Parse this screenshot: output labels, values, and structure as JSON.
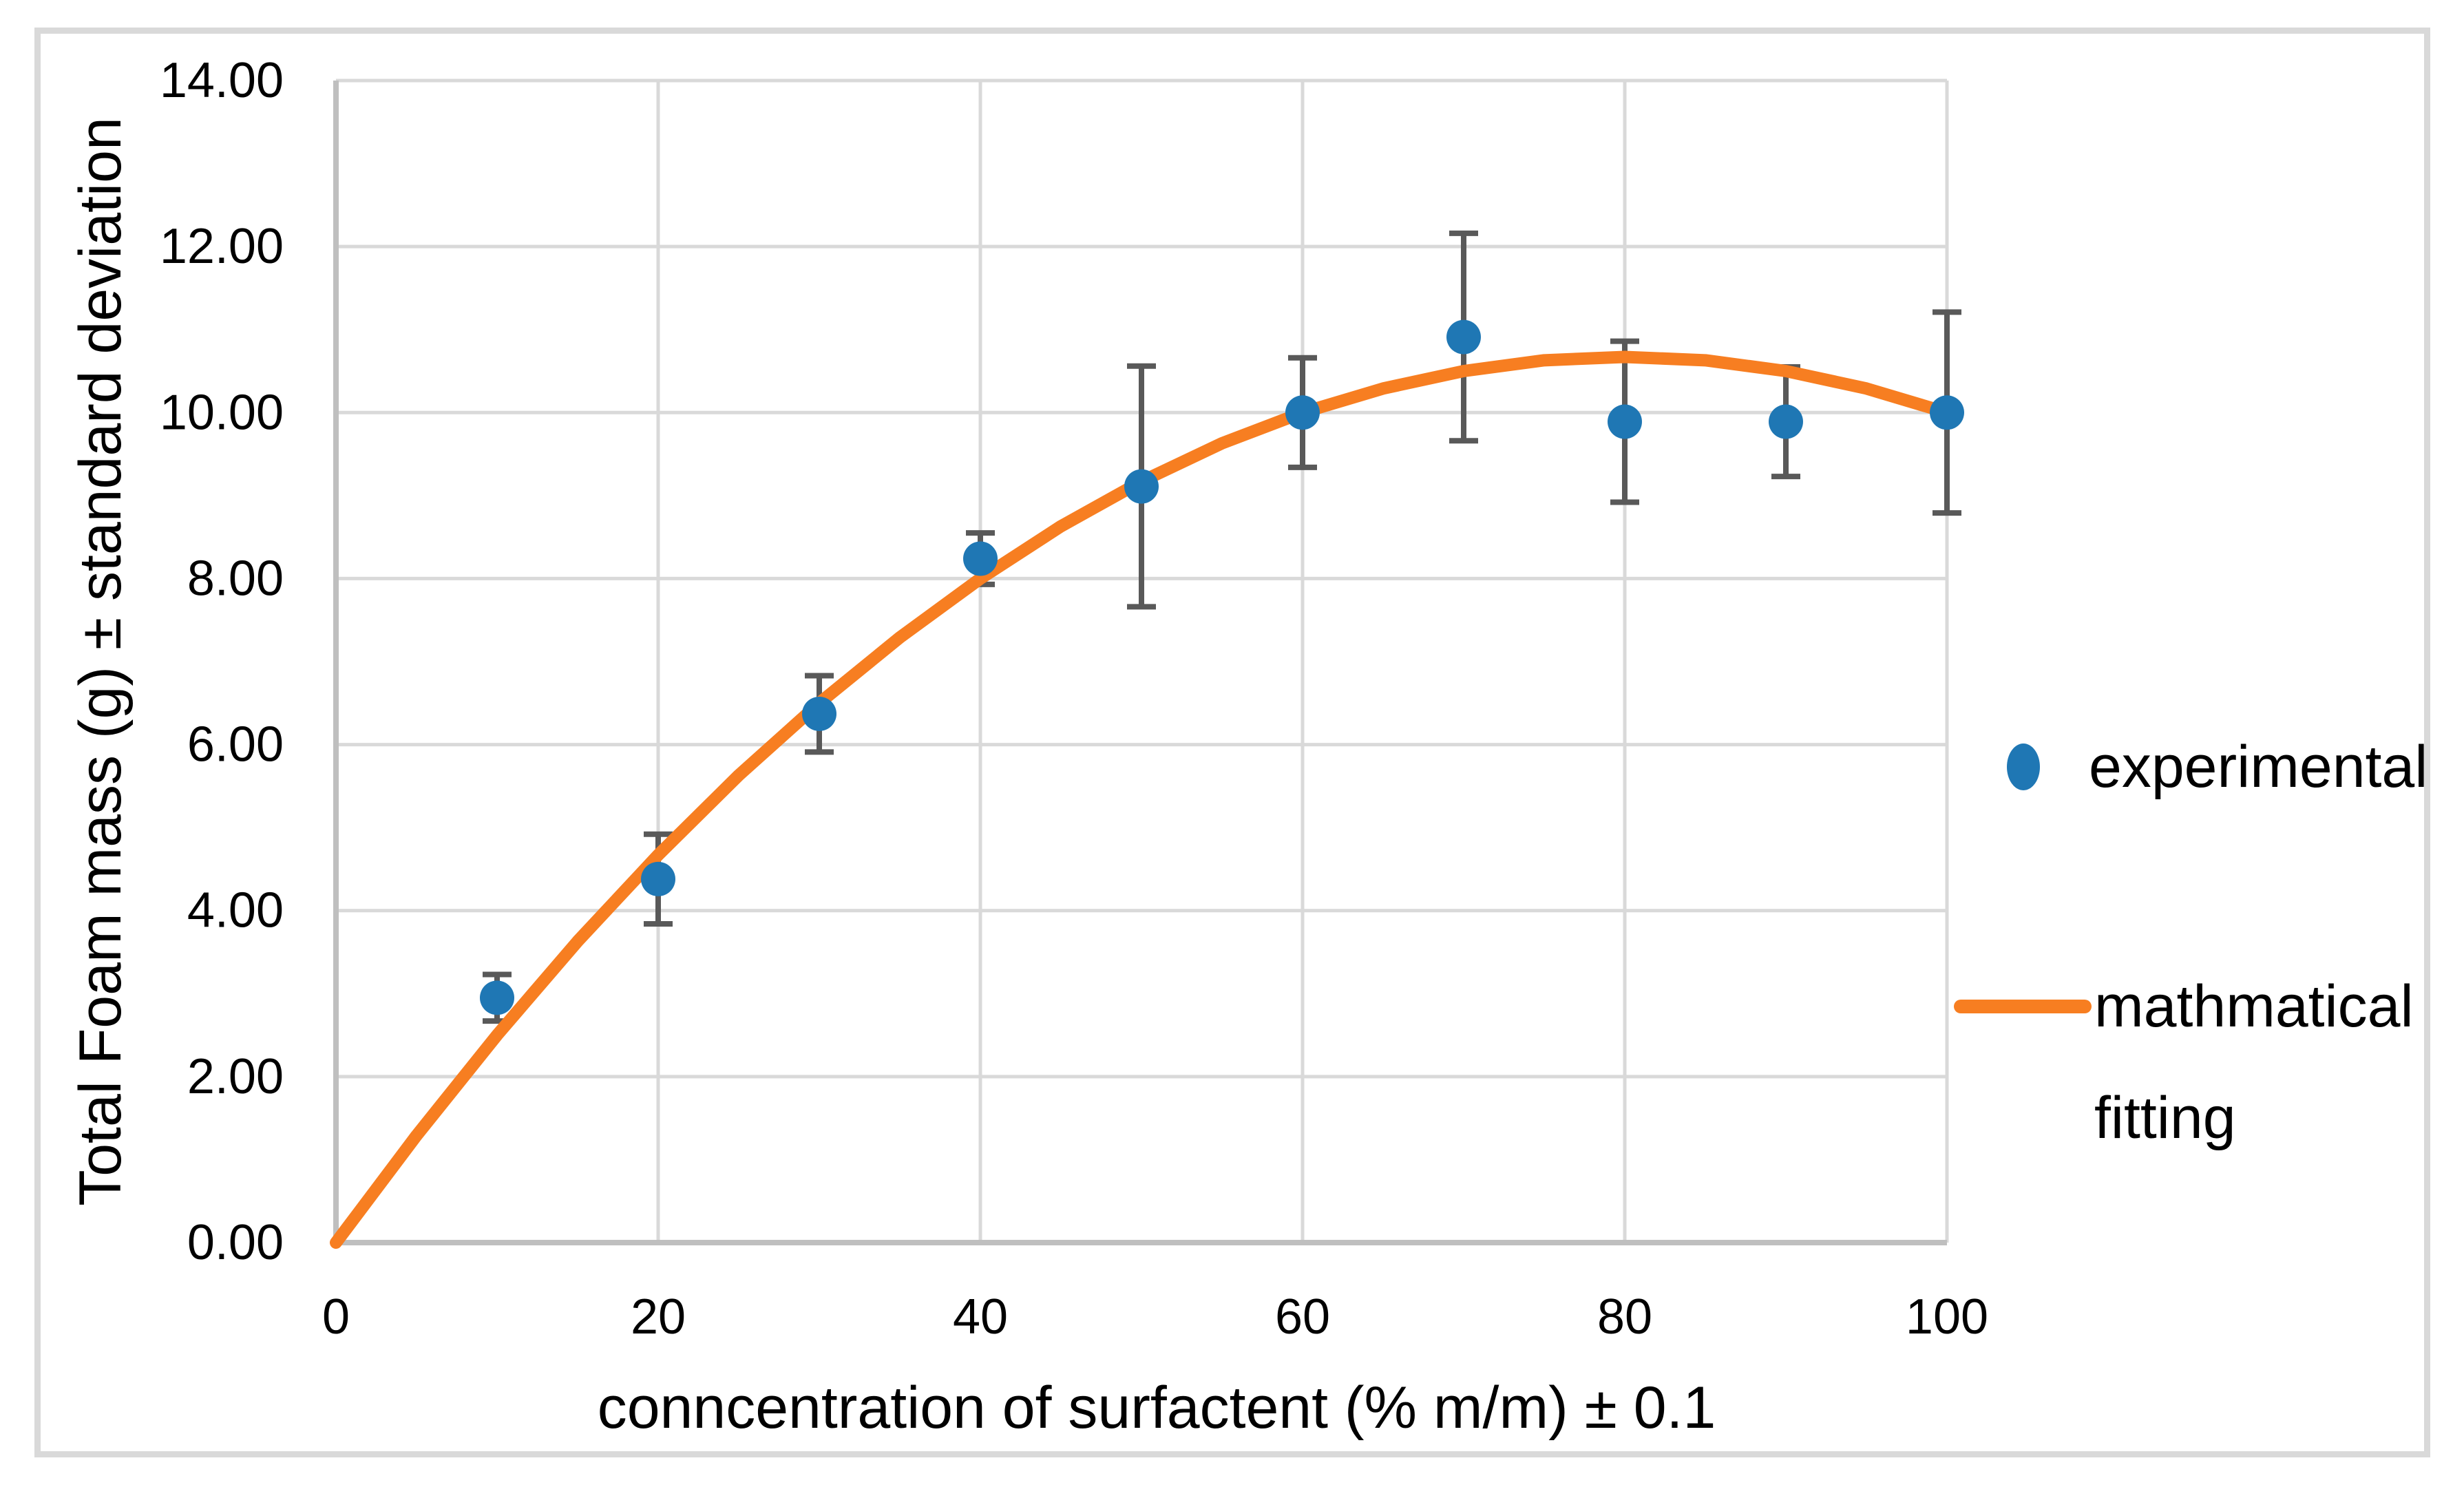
{
  "figure": {
    "background": "#FFFFFF",
    "border_color": "#D9D9D9",
    "grid_color": "#D9D9D9",
    "axis_color": "#BFBFBF",
    "text_color": "#000000"
  },
  "chart_data": {
    "type": "scatter",
    "title": "",
    "xlabel": "conncentration of surfactent (% m/m) ± 0.1",
    "ylabel": "Total Foam mass (g) ± standard deviation",
    "xlim": [
      0,
      100
    ],
    "ylim": [
      0,
      14
    ],
    "grid": true,
    "legend_position": "right",
    "x_ticks": [
      "0",
      "20",
      "40",
      "60",
      "80",
      "100"
    ],
    "x_tick_values": [
      0,
      20,
      40,
      60,
      80,
      100
    ],
    "y_ticks": [
      "0.00",
      "2.00",
      "4.00",
      "6.00",
      "8.00",
      "10.00",
      "12.00",
      "14.00"
    ],
    "y_tick_values": [
      0,
      2,
      4,
      6,
      8,
      10,
      12,
      14
    ],
    "series": [
      {
        "name": "experimental",
        "type": "scatter",
        "marker": "circle",
        "color": "#1F77B4",
        "error_bar_color": "#595959",
        "x": [
          10,
          20,
          30,
          40,
          50,
          60,
          70,
          80,
          90,
          100
        ],
        "y": [
          2.95,
          4.38,
          6.37,
          8.24,
          9.11,
          10.0,
          10.91,
          9.89,
          9.89,
          10.0
        ],
        "y_err": [
          0.28,
          0.54,
          0.46,
          0.31,
          1.45,
          0.66,
          1.25,
          0.97,
          0.66,
          1.21
        ]
      },
      {
        "name": "mathmatical fitting",
        "type": "line",
        "color": "#F77E21",
        "x": [
          0,
          5,
          10,
          15,
          20,
          25,
          30,
          35,
          40,
          45,
          50,
          55,
          60,
          65,
          70,
          75,
          80,
          85,
          90,
          95,
          100
        ],
        "y": [
          0,
          1.29,
          2.5,
          3.63,
          4.67,
          5.63,
          6.5,
          7.29,
          8.0,
          8.63,
          9.17,
          9.63,
          10.0,
          10.29,
          10.5,
          10.63,
          10.67,
          10.63,
          10.5,
          10.29,
          10.0
        ]
      }
    ],
    "legend": {
      "items": [
        {
          "label": "experimental",
          "lines": [
            "experimental"
          ],
          "symbol": "circle"
        },
        {
          "label": "mathmatical fitting",
          "lines": [
            "mathmatical",
            "fitting"
          ],
          "symbol": "line"
        }
      ]
    }
  }
}
